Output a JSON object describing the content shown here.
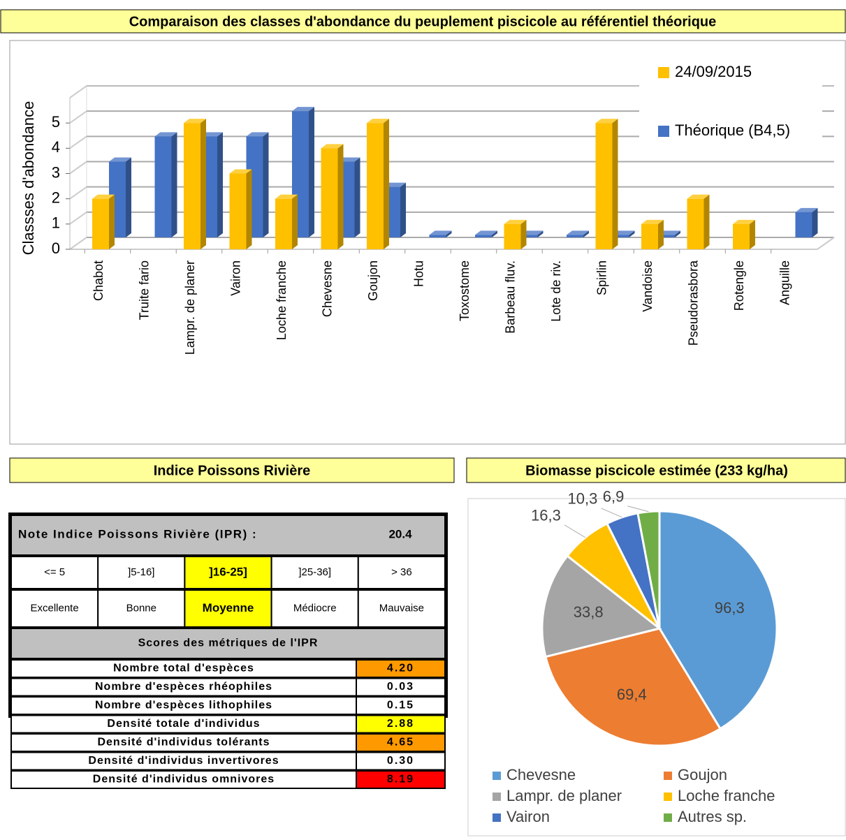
{
  "chart_data": [
    {
      "type": "bar3d",
      "title": "Comparaison des classes d'abondance du peuplement piscicole au référentiel théorique",
      "y_label": "Classses d'abondance",
      "categories": [
        "Chabot",
        "Truite fario",
        "Lampr. de planer",
        "Vairon",
        "Loche franche",
        "Chevesne",
        "Goujon",
        "Hotu",
        "Toxostome",
        "Barbeau fluv.",
        "Lote de riv.",
        "Spirlin",
        "Vandoise",
        "Pseudorasbora",
        "Rotengle",
        "Anguille"
      ],
      "series": [
        {
          "name": "24/09/2015",
          "color": "#ffc000",
          "values": [
            2,
            null,
            5,
            3,
            2,
            4,
            5,
            null,
            null,
            1,
            null,
            5,
            1,
            2,
            1,
            null
          ]
        },
        {
          "name": "Théorique (B4,5)",
          "color": "#4472c4",
          "values": [
            3,
            4,
            4,
            4,
            5,
            3,
            2,
            0.1,
            0.1,
            0.1,
            0.1,
            0.1,
            0.1,
            null,
            null,
            1
          ]
        }
      ],
      "ylim": [
        0,
        6
      ],
      "yticks": [
        0,
        1,
        2,
        3,
        4,
        5
      ],
      "grid": true,
      "legend": "upper right"
    },
    {
      "type": "pie",
      "title": "Biomasse piscicole estimée (233 kg/ha)",
      "categories": [
        "Chevesne",
        "Goujon",
        "Lampr. de planer",
        "Loche franche",
        "Vairon",
        "Autres sp."
      ],
      "values": [
        96.3,
        69.4,
        33.8,
        16.3,
        10.3,
        6.9
      ],
      "value_labels": [
        "96,3",
        "69,4",
        "33,8",
        "16,3",
        "10,3",
        "6,9"
      ],
      "colors": [
        "#5b9bd5",
        "#ed7d31",
        "#a5a5a5",
        "#ffc000",
        "#4472c4",
        "#70ad47"
      ],
      "legend": "bottom"
    }
  ],
  "ipr_table": {
    "title": "Indice Poissons Rivière",
    "note_label": "Note Indice Poissons Rivière (IPR) :",
    "note_value": "20.4",
    "classes": [
      "<= 5",
      "]5-16]",
      "]16-25]",
      "]25-36]",
      "> 36"
    ],
    "qualities": [
      "Excellente",
      "Bonne",
      "Moyenne",
      "Médiocre",
      "Mauvaise"
    ],
    "highlight": 2,
    "highlight_color": "#ffff00",
    "scores_title": "Scores des métriques de l'IPR",
    "metrics": [
      {
        "name": "Nombre total d'espèces",
        "value": "4.20",
        "color": "#ff9900"
      },
      {
        "name": "Nombre d'espèces rhéophiles",
        "value": "0.03",
        "color": "#ffffff"
      },
      {
        "name": "Nombre d'espèces lithophiles",
        "value": "0.15",
        "color": "#ffffff"
      },
      {
        "name": "Densité totale d'individus",
        "value": "2.88",
        "color": "#ffff00"
      },
      {
        "name": "Densité d'individus tolérants",
        "value": "4.65",
        "color": "#ff9900"
      },
      {
        "name": "Densité d'individus invertivores",
        "value": "0.30",
        "color": "#ffffff"
      },
      {
        "name": "Densité d'individus omnivores",
        "value": "8.19",
        "color": "#ff0000"
      }
    ]
  }
}
